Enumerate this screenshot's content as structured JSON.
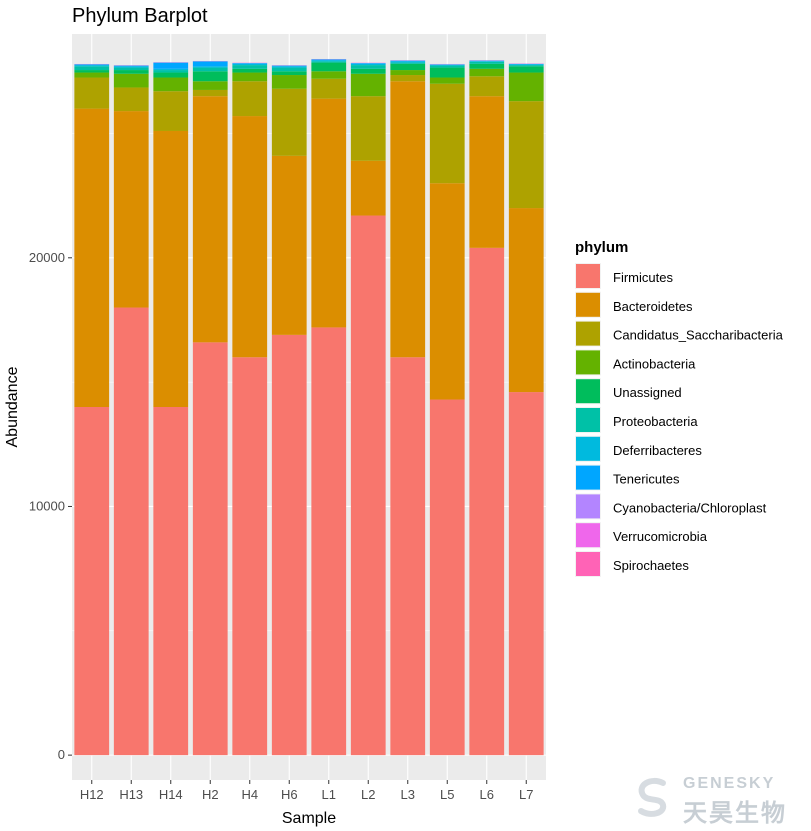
{
  "chart_data": {
    "type": "bar",
    "stacked": true,
    "title": "Phylum Barplot",
    "xlabel": "Sample",
    "ylabel": "Abundance",
    "ylim": [
      -1000,
      29000
    ],
    "yticks": [
      0,
      10000,
      20000
    ],
    "ytick_labels": [
      "0",
      "10000",
      "20000"
    ],
    "grid": true,
    "legend_position": "right",
    "legend_title": "phylum",
    "categories": [
      "H12",
      "H13",
      "H14",
      "H2",
      "H4",
      "H6",
      "L1",
      "L2",
      "L3",
      "L5",
      "L6",
      "L7"
    ],
    "series": [
      {
        "name": "Firmicutes",
        "color": "#F8766D",
        "values": [
          14000,
          18000,
          14000,
          16600,
          16000,
          16900,
          17200,
          21700,
          16000,
          14300,
          20400,
          14600
        ]
      },
      {
        "name": "Bacteroidetes",
        "color": "#DB8E00",
        "values": [
          12000,
          7900,
          11100,
          9900,
          9700,
          7200,
          9200,
          2200,
          11100,
          8700,
          6100,
          7400
        ]
      },
      {
        "name": "Candidatus_Saccharibacteria",
        "color": "#AEA200",
        "values": [
          1250,
          950,
          1600,
          250,
          1400,
          2700,
          800,
          2600,
          250,
          4000,
          800,
          4300
        ]
      },
      {
        "name": "Actinobacteria",
        "color": "#64B200",
        "values": [
          200,
          550,
          550,
          350,
          350,
          550,
          300,
          900,
          200,
          250,
          300,
          1150
        ]
      },
      {
        "name": "Unassigned",
        "color": "#00BD5C",
        "values": [
          100,
          150,
          200,
          400,
          150,
          150,
          350,
          200,
          250,
          400,
          200,
          250
        ]
      },
      {
        "name": "Proteobacteria",
        "color": "#00C1A7",
        "values": [
          150,
          100,
          100,
          150,
          150,
          150,
          50,
          150,
          50,
          80,
          80,
          50
        ]
      },
      {
        "name": "Deferribacteres",
        "color": "#00BADE",
        "values": [
          50,
          50,
          50,
          50,
          50,
          50,
          50,
          50,
          50,
          30,
          30,
          30
        ]
      },
      {
        "name": "Tenericutes",
        "color": "#00A6FF",
        "values": [
          30,
          30,
          250,
          200,
          30,
          30,
          30,
          30,
          30,
          20,
          20,
          20
        ]
      },
      {
        "name": "Cyanobacteria/Chloroplast",
        "color": "#B385FF",
        "values": [
          5,
          5,
          5,
          5,
          5,
          5,
          5,
          5,
          5,
          5,
          5,
          5
        ]
      },
      {
        "name": "Verrucomicrobia",
        "color": "#EF67EB",
        "values": [
          5,
          5,
          5,
          5,
          5,
          5,
          5,
          5,
          5,
          5,
          5,
          5
        ]
      },
      {
        "name": "Spirochaetes",
        "color": "#FF63B6",
        "values": [
          5,
          5,
          5,
          5,
          5,
          5,
          5,
          5,
          5,
          5,
          5,
          5
        ]
      }
    ]
  },
  "watermark": {
    "brand_en": "GENESKY",
    "brand_cn": "天昊生物"
  }
}
